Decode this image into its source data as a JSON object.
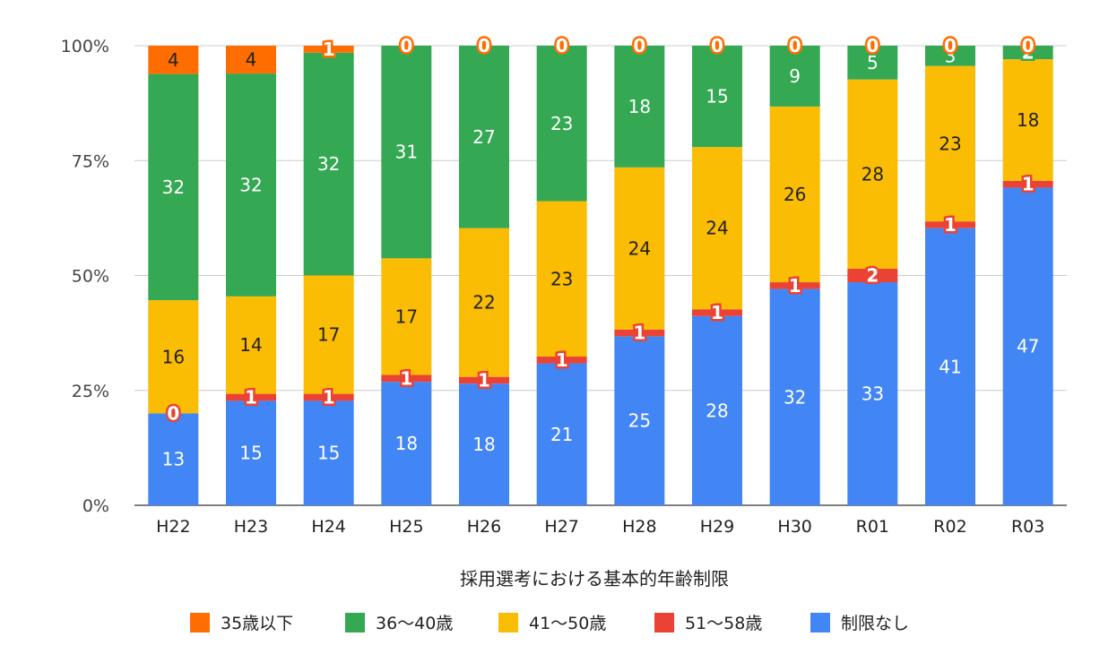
{
  "chart_data": {
    "type": "bar",
    "stacked": true,
    "normalized_percent": true,
    "title": "",
    "xlabel": "採用選考における基本的年齢制限",
    "ylabel": "",
    "ylim": [
      0,
      100
    ],
    "yticks": [
      "0%",
      "25%",
      "50%",
      "75%",
      "100%"
    ],
    "grid": true,
    "legend_position": "bottom",
    "categories": [
      "H22",
      "H23",
      "H24",
      "H25",
      "H26",
      "H27",
      "H28",
      "H29",
      "H30",
      "R01",
      "R02",
      "R03"
    ],
    "series": [
      {
        "name": "制限なし",
        "color": "#4285F4",
        "label_color": "#ffffff",
        "values": [
          13,
          15,
          15,
          18,
          18,
          21,
          25,
          28,
          32,
          33,
          41,
          47
        ]
      },
      {
        "name": "51〜58歳",
        "color": "#EA4335",
        "label_color": "#ffffff",
        "values": [
          0,
          1,
          1,
          1,
          1,
          1,
          1,
          1,
          1,
          2,
          1,
          1
        ]
      },
      {
        "name": "41〜50歳",
        "color": "#FBBC04",
        "label_color": "#222222",
        "values": [
          16,
          14,
          17,
          17,
          22,
          23,
          24,
          24,
          26,
          28,
          23,
          18
        ]
      },
      {
        "name": "36〜40歳",
        "color": "#34A853",
        "label_color": "#ffffff",
        "values": [
          32,
          32,
          32,
          31,
          27,
          23,
          18,
          15,
          9,
          5,
          3,
          2
        ]
      },
      {
        "name": "35歳以下",
        "color": "#FF6D01",
        "label_color": "#222222",
        "values": [
          4,
          4,
          1,
          0,
          0,
          0,
          0,
          0,
          0,
          0,
          0,
          0
        ]
      }
    ],
    "legend_order": [
      "35歳以下",
      "36〜40歳",
      "41〜50歳",
      "51〜58歳",
      "制限なし"
    ]
  }
}
